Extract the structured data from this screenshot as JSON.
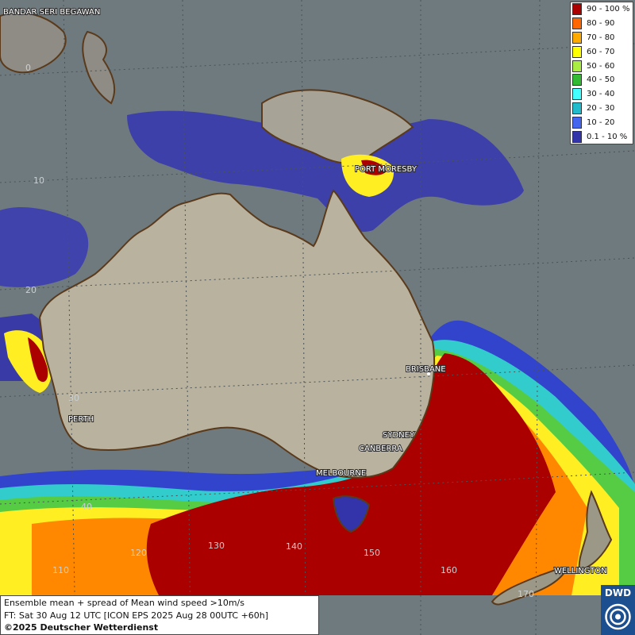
{
  "map": {
    "cities": [
      {
        "name": "BANDAR SERI BEGAWAN"
      },
      {
        "name": "PORT MORESBY"
      },
      {
        "name": "BRISBANE"
      },
      {
        "name": "SYDNEY"
      },
      {
        "name": "CANBERRA"
      },
      {
        "name": "MELBOURNE"
      },
      {
        "name": "PERTH"
      },
      {
        "name": "WELLINGTON"
      }
    ],
    "latitude_labels": [
      "0",
      "10",
      "20",
      "30",
      "40"
    ],
    "longitude_labels": [
      "110",
      "120",
      "130",
      "140",
      "150",
      "160",
      "170"
    ]
  },
  "legend": {
    "items": [
      {
        "label": "90 - 100 %",
        "color": "#aa0000"
      },
      {
        "label": "80 - 90",
        "color": "#ff6600"
      },
      {
        "label": "70 - 80",
        "color": "#ffaa00"
      },
      {
        "label": "60 - 70",
        "color": "#ffff00"
      },
      {
        "label": "50 - 60",
        "color": "#aaee44"
      },
      {
        "label": "40 - 50",
        "color": "#33bb33"
      },
      {
        "label": "30 - 40",
        "color": "#44ffff"
      },
      {
        "label": "20 - 30",
        "color": "#22bbcc"
      },
      {
        "label": "10 - 20",
        "color": "#4466ee"
      },
      {
        "label": "0.1 - 10 %",
        "color": "#3333aa"
      }
    ]
  },
  "info": {
    "line1": "Ensemble mean + spread of Mean wind speed >10m/s",
    "line2": "FT: Sat 30 Aug 12 UTC [ICON EPS 2025 Aug 28 00UTC +60h]",
    "line3": "©2025 Deutscher Wetterdienst"
  },
  "logo": {
    "text": "DWD"
  }
}
